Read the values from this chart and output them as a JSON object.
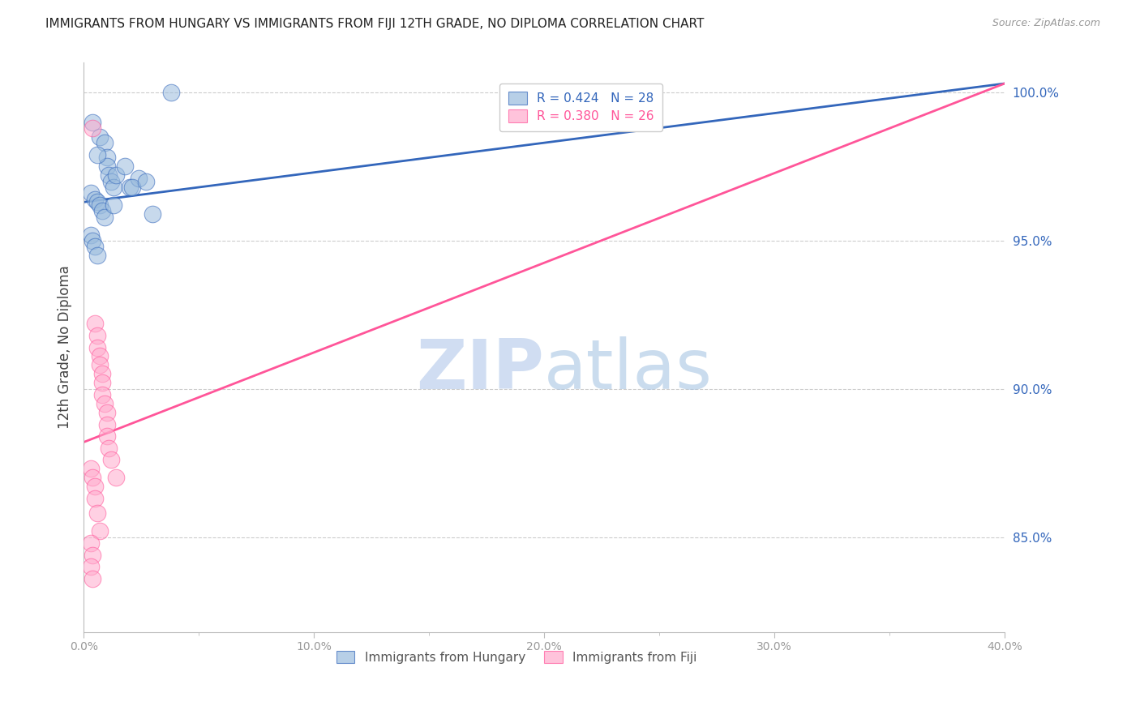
{
  "title": "IMMIGRANTS FROM HUNGARY VS IMMIGRANTS FROM FIJI 12TH GRADE, NO DIPLOMA CORRELATION CHART",
  "source": "Source: ZipAtlas.com",
  "ylabel": "12th Grade, No Diploma",
  "ylabel_right_ticks": [
    "100.0%",
    "95.0%",
    "90.0%",
    "85.0%"
  ],
  "ylabel_right_vals": [
    1.0,
    0.95,
    0.9,
    0.85
  ],
  "xmin": 0.0,
  "xmax": 0.4,
  "ymin": 0.818,
  "ymax": 1.01,
  "legend_blue_r": "R = 0.424",
  "legend_blue_n": "N = 28",
  "legend_pink_r": "R = 0.380",
  "legend_pink_n": "N = 26",
  "blue_line_x0": 0.0,
  "blue_line_y0": 0.963,
  "blue_line_x1": 0.4,
  "blue_line_y1": 1.003,
  "pink_line_x0": 0.0,
  "pink_line_y0": 0.882,
  "pink_line_x1": 0.4,
  "pink_line_y1": 1.003,
  "blue_scatter_x": [
    0.004,
    0.007,
    0.009,
    0.01,
    0.01,
    0.011,
    0.012,
    0.013,
    0.003,
    0.005,
    0.006,
    0.007,
    0.008,
    0.009,
    0.014,
    0.018,
    0.02,
    0.024,
    0.03,
    0.003,
    0.004,
    0.005,
    0.006,
    0.021,
    0.027,
    0.038,
    0.006,
    0.013
  ],
  "blue_scatter_y": [
    0.99,
    0.985,
    0.983,
    0.978,
    0.975,
    0.972,
    0.97,
    0.968,
    0.966,
    0.964,
    0.963,
    0.962,
    0.96,
    0.958,
    0.972,
    0.975,
    0.968,
    0.971,
    0.959,
    0.952,
    0.95,
    0.948,
    0.945,
    0.968,
    0.97,
    1.0,
    0.979,
    0.962
  ],
  "pink_scatter_x": [
    0.004,
    0.005,
    0.006,
    0.006,
    0.007,
    0.007,
    0.008,
    0.008,
    0.008,
    0.009,
    0.01,
    0.01,
    0.01,
    0.011,
    0.012,
    0.003,
    0.004,
    0.005,
    0.005,
    0.006,
    0.007,
    0.014,
    0.003,
    0.004,
    0.003,
    0.004
  ],
  "pink_scatter_y": [
    0.988,
    0.922,
    0.918,
    0.914,
    0.911,
    0.908,
    0.905,
    0.902,
    0.898,
    0.895,
    0.892,
    0.888,
    0.884,
    0.88,
    0.876,
    0.873,
    0.87,
    0.867,
    0.863,
    0.858,
    0.852,
    0.87,
    0.848,
    0.844,
    0.84,
    0.836
  ],
  "blue_color": "#99BBDD",
  "pink_color": "#FFAACC",
  "blue_line_color": "#3366BB",
  "pink_line_color": "#FF5599",
  "background_color": "#FFFFFF",
  "grid_color": "#CCCCCC",
  "watermark_zip": "ZIP",
  "watermark_atlas": "atlas"
}
